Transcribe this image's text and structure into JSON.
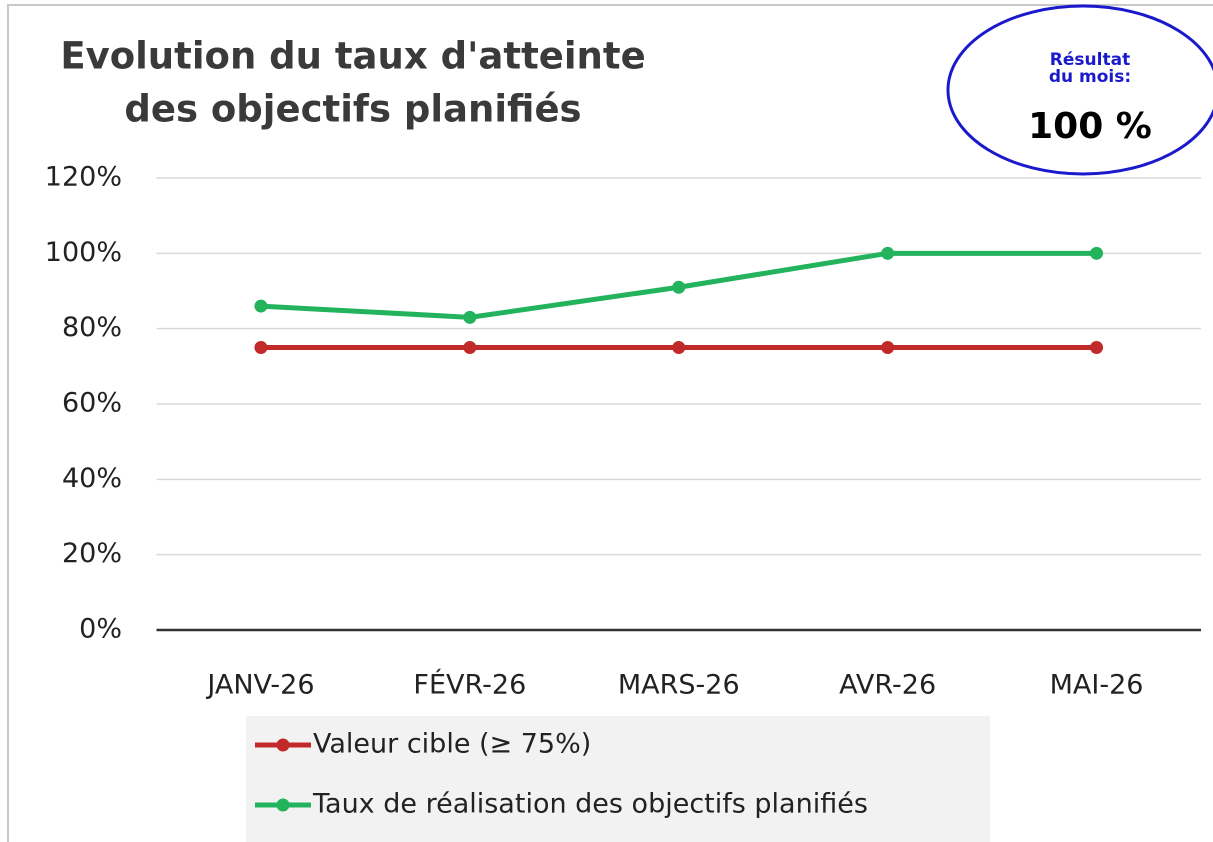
{
  "chart_data": {
    "type": "line",
    "title": [
      "Evolution du taux d'atteinte",
      "des objectifs planifiés"
    ],
    "annotation": {
      "label": [
        "Résultat",
        "du mois:"
      ],
      "value_label": "100 %"
    },
    "categories": [
      "JANV-26",
      "FÉVR-26",
      "MARS-26",
      "AVR-26",
      "MAI-26"
    ],
    "series": [
      {
        "name": "Valeur cible (≥ 75%)",
        "color": "#c22a2a",
        "values": [
          75,
          75,
          75,
          75,
          75
        ]
      },
      {
        "name": "Taux de réalisation des objectifs planifiés",
        "color": "#22b35c",
        "values": [
          86,
          83,
          91,
          100,
          100
        ]
      }
    ],
    "ylim": [
      0,
      120
    ],
    "yticks": [
      {
        "value": 0,
        "label": "0%"
      },
      {
        "value": 20,
        "label": "20%"
      },
      {
        "value": 40,
        "label": "40%"
      },
      {
        "value": 60,
        "label": "60%"
      },
      {
        "value": 80,
        "label": "80%"
      },
      {
        "value": 100,
        "label": "100%"
      },
      {
        "value": 120,
        "label": "120%"
      }
    ],
    "grid": true
  }
}
